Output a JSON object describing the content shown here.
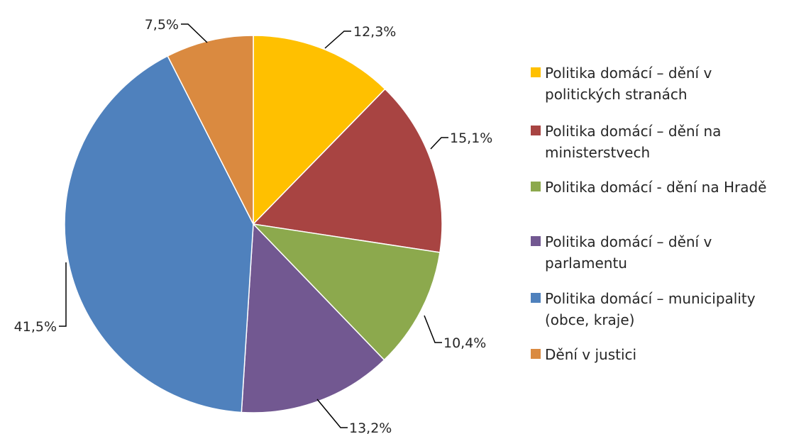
{
  "chart_data": {
    "type": "pie",
    "title": "",
    "slices": [
      {
        "label": "Politika domácí – dění v politických stranách",
        "value": 12.3,
        "display": "12,3%",
        "color": "#FFC000"
      },
      {
        "label": "Politika domácí – dění na ministerstvech",
        "value": 15.1,
        "display": "15,1%",
        "color": "#A84442"
      },
      {
        "label": "Politika domácí - dění na Hradě",
        "value": 10.4,
        "display": "10,4%",
        "color": "#8CA94D"
      },
      {
        "label": "Politika domácí – dění v parlamentu",
        "value": 13.2,
        "display": "13,2%",
        "color": "#725891"
      },
      {
        "label": "Politika domácí – municipality (obce, kraje)",
        "value": 41.5,
        "display": "41,5%",
        "color": "#4F81BD"
      },
      {
        "label": "Dění v justici",
        "value": 7.5,
        "display": "7,5%",
        "color": "#DA8A40"
      }
    ],
    "start_angle_deg": 0,
    "direction": "clockwise",
    "legend_position": "right"
  },
  "legend": {
    "items": [
      {
        "lines": [
          "Politika domácí – dění v",
          "politických stranách"
        ],
        "color": "#FFC000"
      },
      {
        "lines": [
          "Politika domácí – dění na",
          "ministerstvech"
        ],
        "color": "#A84442"
      },
      {
        "lines": [
          "Politika domácí - dění na Hradě"
        ],
        "color": "#8CA94D"
      },
      {
        "lines": [
          "Politika domácí – dění v",
          "parlamentu"
        ],
        "color": "#725891"
      },
      {
        "lines": [
          "Politika domácí – municipality",
          "(obce, kraje)"
        ],
        "color": "#4F81BD"
      },
      {
        "lines": [
          "Dění v justici"
        ],
        "color": "#DA8A40"
      }
    ]
  }
}
